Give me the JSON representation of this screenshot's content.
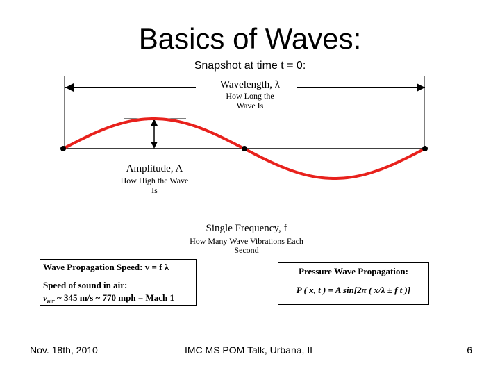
{
  "slide": {
    "title": "Basics of Waves:",
    "subtitle": "Snapshot at time t = 0:"
  },
  "wavelength": {
    "label": "Wavelength, λ",
    "desc_line1": "How Long the",
    "desc_line2": "Wave Is"
  },
  "amplitude": {
    "label": "Amplitude, A",
    "desc_line1": "How High the Wave",
    "desc_line2": "Is"
  },
  "frequency": {
    "label": "Single Frequency,  f",
    "desc_line1": "How Many Wave Vibrations Each",
    "desc_line2": "Second"
  },
  "speed_box": {
    "line1": "Wave Propagation Speed: v = f λ",
    "line2": "Speed of sound in air:",
    "line3_v": "v",
    "line3_sub": "air",
    "line3_rest": " ~ 345 m/s ~ 770 mph = Mach 1"
  },
  "pressure_box": {
    "line1": "Pressure Wave Propagation:",
    "line2": "P ( x, t ) = A sin[2π ( x/λ ± f t )]"
  },
  "footer": {
    "date": "Nov. 18th, 2010",
    "event": "IMC MS POM Talk, Urbana, IL",
    "page": "6"
  },
  "colors": {
    "wave": "#e8211c",
    "text": "#000000"
  }
}
